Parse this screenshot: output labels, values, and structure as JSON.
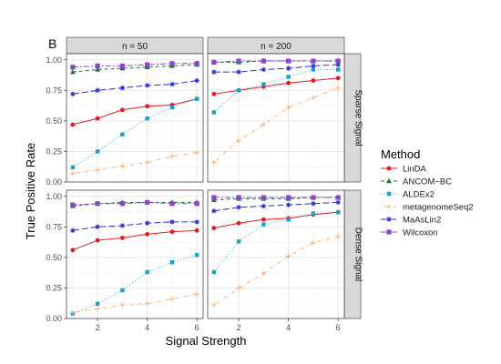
{
  "figure": {
    "panel_tag": "B",
    "xlabel": "Signal Strength",
    "ylabel": "True Positive Rate",
    "legend_title": "Method"
  },
  "chart_data": {
    "type": "line",
    "facets": {
      "columns": [
        "n = 50",
        "n = 200"
      ],
      "rows": [
        "Sparse Signal",
        "Dense Signal"
      ]
    },
    "x": [
      1,
      2,
      3,
      4,
      5,
      6
    ],
    "xticks": [
      2,
      4,
      6
    ],
    "xlim": [
      0.75,
      6.25
    ],
    "yticks": [
      "0.00",
      "0.25",
      "0.50",
      "0.75",
      "1.00"
    ],
    "ylim": [
      0,
      1.05
    ],
    "grid": true,
    "legend_placement": "right",
    "methods": [
      {
        "name": "LinDA",
        "color": "#e41a1c",
        "dash": "solid",
        "marker": "circle"
      },
      {
        "name": "ANCOM−BC",
        "color": "#1b7837",
        "dash": "dashed",
        "marker": "triangle"
      },
      {
        "name": "ALDEx2",
        "color": "#1ba3c6",
        "dash": "dotted",
        "marker": "square"
      },
      {
        "name": "metagenomeSeq2",
        "color": "#fdae6b",
        "dash": "dotdash",
        "marker": "plus"
      },
      {
        "name": "MaAsLin2",
        "color": "#2c2ccf",
        "dash": "longdash",
        "marker": "asterisk"
      },
      {
        "name": "Wilcoxon",
        "color": "#8e44c9",
        "dash": "twodash",
        "marker": "squarefilled"
      }
    ],
    "panels": [
      {
        "col": 0,
        "row": 0,
        "series": [
          [
            0.47,
            0.52,
            0.59,
            0.62,
            0.63,
            0.68
          ],
          [
            0.9,
            0.92,
            0.93,
            0.94,
            0.95,
            0.96
          ],
          [
            0.12,
            0.25,
            0.39,
            0.52,
            0.61,
            0.68
          ],
          [
            0.07,
            0.1,
            0.13,
            0.16,
            0.21,
            0.24
          ],
          [
            0.72,
            0.75,
            0.77,
            0.79,
            0.8,
            0.83
          ],
          [
            0.94,
            0.95,
            0.95,
            0.96,
            0.97,
            0.97
          ]
        ]
      },
      {
        "col": 1,
        "row": 0,
        "series": [
          [
            0.72,
            0.75,
            0.78,
            0.81,
            0.83,
            0.85
          ],
          [
            0.98,
            0.98,
            0.99,
            0.99,
            0.99,
            0.99
          ],
          [
            0.57,
            0.75,
            0.8,
            0.86,
            0.92,
            0.92
          ],
          [
            0.16,
            0.34,
            0.47,
            0.61,
            0.69,
            0.77
          ],
          [
            0.9,
            0.9,
            0.92,
            0.93,
            0.95,
            0.96
          ],
          [
            0.98,
            0.99,
            0.99,
            0.99,
            0.99,
            0.99
          ]
        ]
      },
      {
        "col": 0,
        "row": 1,
        "series": [
          [
            0.56,
            0.64,
            0.66,
            0.69,
            0.71,
            0.72
          ],
          [
            0.92,
            0.94,
            0.95,
            0.95,
            0.95,
            0.95
          ],
          [
            0.04,
            0.12,
            0.23,
            0.38,
            0.46,
            0.52
          ],
          [
            0.05,
            0.08,
            0.11,
            0.12,
            0.16,
            0.2
          ],
          [
            0.72,
            0.75,
            0.76,
            0.78,
            0.79,
            0.79
          ],
          [
            0.93,
            0.94,
            0.94,
            0.95,
            0.94,
            0.94
          ]
        ]
      },
      {
        "col": 1,
        "row": 1,
        "series": [
          [
            0.74,
            0.78,
            0.81,
            0.82,
            0.85,
            0.87
          ],
          [
            0.97,
            0.98,
            0.98,
            0.98,
            0.99,
            0.99
          ],
          [
            0.38,
            0.63,
            0.77,
            0.81,
            0.86,
            0.87
          ],
          [
            0.11,
            0.25,
            0.37,
            0.51,
            0.62,
            0.67
          ],
          [
            0.88,
            0.91,
            0.92,
            0.93,
            0.94,
            0.95
          ],
          [
            0.99,
            0.99,
            0.99,
            0.99,
            0.99,
            0.99
          ]
        ]
      }
    ]
  }
}
